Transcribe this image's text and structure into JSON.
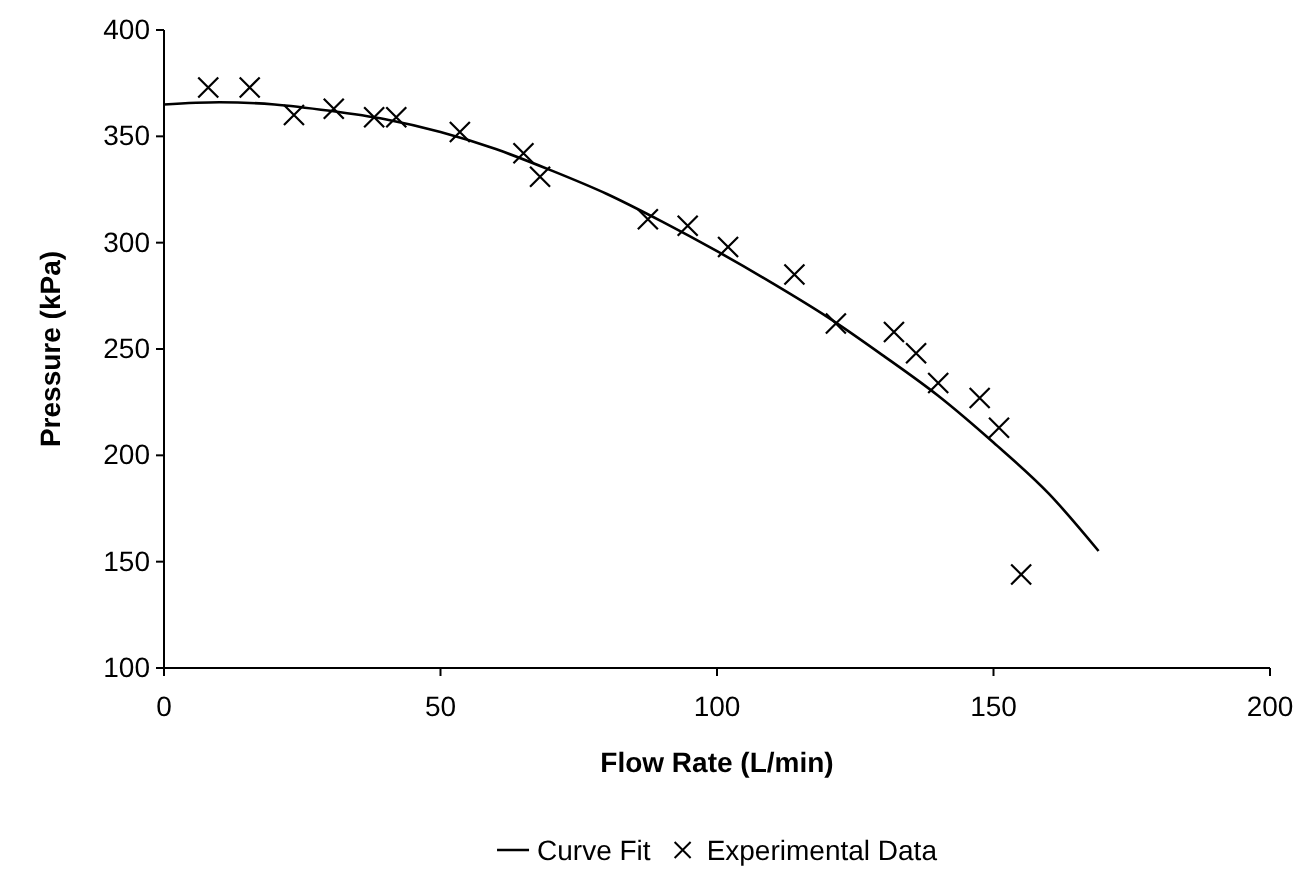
{
  "chart_data": {
    "type": "scatter",
    "xlabel": "Flow Rate (L/min)",
    "ylabel": "Pressure (kPa)",
    "xlim": [
      0,
      200
    ],
    "ylim": [
      100,
      400
    ],
    "xticks": [
      0,
      50,
      100,
      150,
      200
    ],
    "yticks": [
      100,
      150,
      200,
      250,
      300,
      350,
      400
    ],
    "legend": "bottom",
    "grid": false,
    "series": [
      {
        "name": "Curve Fit",
        "type": "line",
        "color": "#000000",
        "marker": "none",
        "x": [
          0,
          10,
          20,
          30,
          40,
          50,
          60,
          70,
          80,
          90,
          100,
          110,
          120,
          130,
          140,
          150,
          160,
          169
        ],
        "values": [
          365,
          366,
          365,
          362,
          358,
          352,
          344,
          334,
          323,
          310,
          296,
          281,
          265,
          247,
          228,
          206,
          182,
          155
        ]
      },
      {
        "name": "Experimental Data",
        "color": "#000000",
        "marker": "cross",
        "x": [
          8,
          15.5,
          23.5,
          30.7,
          38,
          42,
          53.5,
          65,
          68,
          87.5,
          94.7,
          102,
          114,
          121.5,
          132,
          136,
          140,
          147.5,
          151,
          155
        ],
        "values": [
          373,
          373,
          360,
          363,
          359,
          359,
          352,
          342,
          331,
          311,
          308,
          298,
          285,
          262,
          258,
          248,
          234,
          227,
          213,
          144
        ]
      }
    ]
  }
}
